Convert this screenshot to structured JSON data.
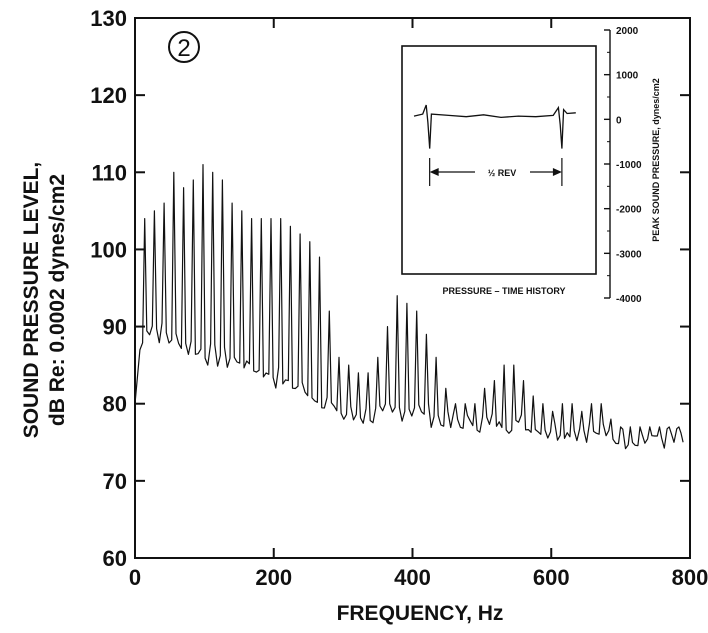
{
  "chart_data": [
    {
      "type": "line",
      "badge": "2",
      "xlabel": "FREQUENCY, Hz",
      "ylabel_line1": "SOUND PRESSURE LEVEL,",
      "ylabel_line2": "dB Re: 0.0002 dynes/cm2",
      "xlim": [
        0,
        800
      ],
      "ylim": [
        60,
        130
      ],
      "x_ticks": [
        0,
        200,
        400,
        600,
        800
      ],
      "y_ticks": [
        60,
        70,
        80,
        90,
        100,
        110,
        120,
        130
      ],
      "harmonic_spacing_hz": 14,
      "peaks": [
        {
          "x": 14,
          "y": 104
        },
        {
          "x": 28,
          "y": 105
        },
        {
          "x": 42,
          "y": 106
        },
        {
          "x": 56,
          "y": 110
        },
        {
          "x": 70,
          "y": 108
        },
        {
          "x": 84,
          "y": 109
        },
        {
          "x": 98,
          "y": 111
        },
        {
          "x": 112,
          "y": 110
        },
        {
          "x": 126,
          "y": 109
        },
        {
          "x": 140,
          "y": 106
        },
        {
          "x": 154,
          "y": 105
        },
        {
          "x": 168,
          "y": 104
        },
        {
          "x": 182,
          "y": 104
        },
        {
          "x": 196,
          "y": 104
        },
        {
          "x": 210,
          "y": 104
        },
        {
          "x": 224,
          "y": 103
        },
        {
          "x": 238,
          "y": 102
        },
        {
          "x": 252,
          "y": 101
        },
        {
          "x": 266,
          "y": 99
        },
        {
          "x": 280,
          "y": 92
        },
        {
          "x": 294,
          "y": 86
        },
        {
          "x": 308,
          "y": 85
        },
        {
          "x": 322,
          "y": 84
        },
        {
          "x": 336,
          "y": 84
        },
        {
          "x": 350,
          "y": 86
        },
        {
          "x": 364,
          "y": 90
        },
        {
          "x": 378,
          "y": 94
        },
        {
          "x": 392,
          "y": 93
        },
        {
          "x": 406,
          "y": 92
        },
        {
          "x": 420,
          "y": 89
        },
        {
          "x": 434,
          "y": 86
        },
        {
          "x": 448,
          "y": 82
        },
        {
          "x": 462,
          "y": 80
        },
        {
          "x": 476,
          "y": 80
        },
        {
          "x": 490,
          "y": 80
        },
        {
          "x": 504,
          "y": 82
        },
        {
          "x": 518,
          "y": 83
        },
        {
          "x": 532,
          "y": 85
        },
        {
          "x": 546,
          "y": 85
        },
        {
          "x": 560,
          "y": 83
        },
        {
          "x": 574,
          "y": 81
        },
        {
          "x": 588,
          "y": 80
        },
        {
          "x": 602,
          "y": 79
        },
        {
          "x": 616,
          "y": 80
        },
        {
          "x": 630,
          "y": 80
        },
        {
          "x": 644,
          "y": 79
        },
        {
          "x": 658,
          "y": 80
        },
        {
          "x": 672,
          "y": 80
        },
        {
          "x": 686,
          "y": 78
        },
        {
          "x": 700,
          "y": 77
        },
        {
          "x": 714,
          "y": 77
        },
        {
          "x": 728,
          "y": 77
        },
        {
          "x": 742,
          "y": 77
        },
        {
          "x": 756,
          "y": 77
        },
        {
          "x": 770,
          "y": 77
        },
        {
          "x": 784,
          "y": 77
        }
      ],
      "floor": [
        {
          "x": 0,
          "y": 80
        },
        {
          "x": 10,
          "y": 90
        },
        {
          "x": 50,
          "y": 88
        },
        {
          "x": 100,
          "y": 86
        },
        {
          "x": 150,
          "y": 85
        },
        {
          "x": 200,
          "y": 83
        },
        {
          "x": 250,
          "y": 81
        },
        {
          "x": 300,
          "y": 78
        },
        {
          "x": 350,
          "y": 78
        },
        {
          "x": 400,
          "y": 79
        },
        {
          "x": 450,
          "y": 77
        },
        {
          "x": 500,
          "y": 77
        },
        {
          "x": 550,
          "y": 77
        },
        {
          "x": 600,
          "y": 76
        },
        {
          "x": 650,
          "y": 76
        },
        {
          "x": 700,
          "y": 75
        },
        {
          "x": 750,
          "y": 75
        },
        {
          "x": 790,
          "y": 75
        }
      ]
    },
    {
      "type": "line",
      "title": "PRESSURE – TIME HISTORY",
      "ylabel": "PEAK SOUND PRESSURE, dynes/cm2",
      "ylim": [
        -4000,
        2000
      ],
      "y_ticks": [
        2000,
        1000,
        0,
        -1000,
        -2000,
        -3000,
        -4000
      ],
      "annotation": "½ REV",
      "waveform": [
        {
          "t": 0.0,
          "p": 50
        },
        {
          "t": 0.05,
          "p": 80
        },
        {
          "t": 0.07,
          "p": 220
        },
        {
          "t": 0.08,
          "p": -50
        },
        {
          "t": 0.09,
          "p": -450
        },
        {
          "t": 0.1,
          "p": 80
        },
        {
          "t": 0.2,
          "p": 60
        },
        {
          "t": 0.3,
          "p": 40
        },
        {
          "t": 0.4,
          "p": 70
        },
        {
          "t": 0.5,
          "p": 30
        },
        {
          "t": 0.6,
          "p": 50
        },
        {
          "t": 0.7,
          "p": 40
        },
        {
          "t": 0.8,
          "p": 60
        },
        {
          "t": 0.83,
          "p": 180
        },
        {
          "t": 0.84,
          "p": -80
        },
        {
          "t": 0.85,
          "p": -450
        },
        {
          "t": 0.86,
          "p": 150
        },
        {
          "t": 0.88,
          "p": 90
        },
        {
          "t": 0.93,
          "p": 100
        }
      ]
    }
  ]
}
